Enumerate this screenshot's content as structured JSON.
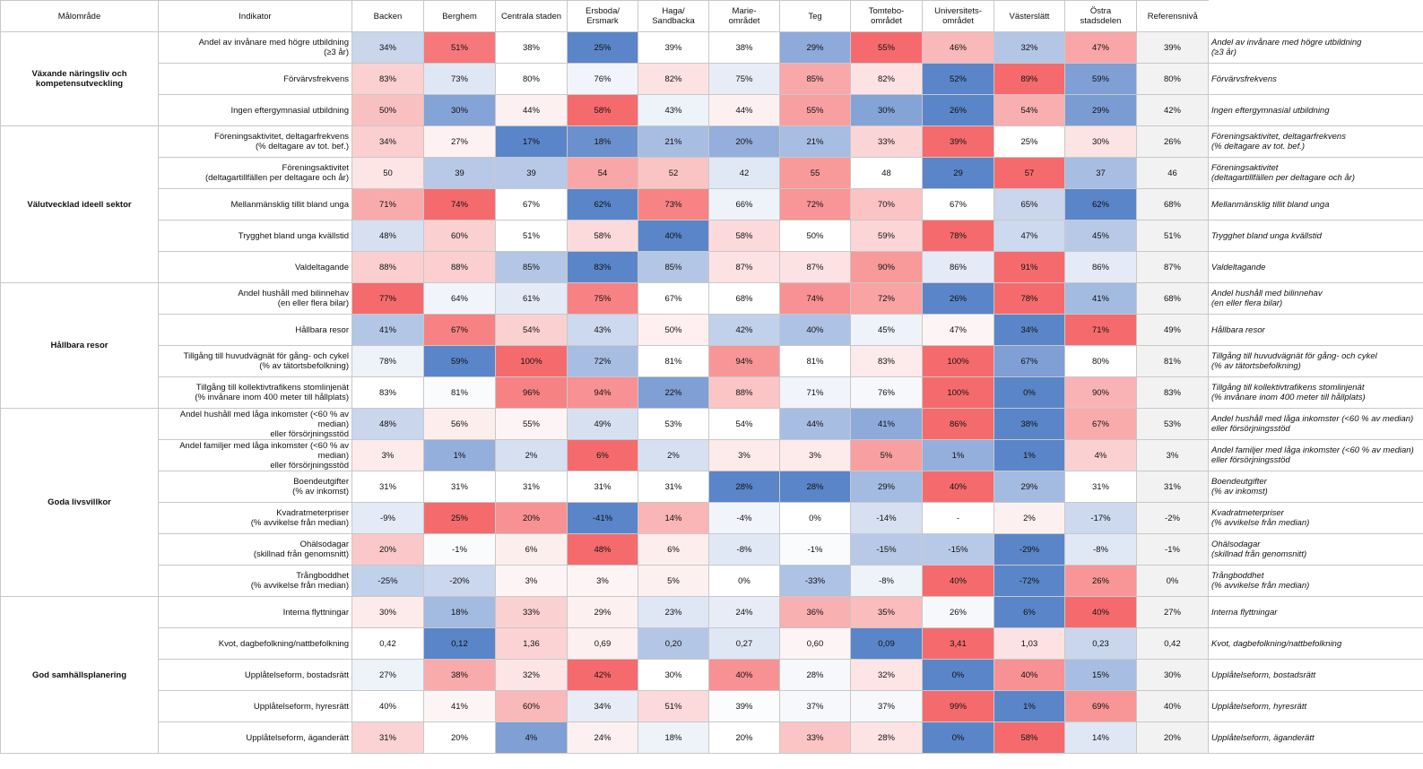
{
  "headers": {
    "omrade": "Målområde",
    "indikator": "Indikator",
    "areas": [
      "Backen",
      "Berghem",
      "Centrala staden",
      "Ersboda/\nErsmark",
      "Haga/\nSandbacka",
      "Marie-\nområdet",
      "Teg",
      "Tomtebo-\nområdet",
      "Universitets-\nområdet",
      "Västerslätt",
      "Östra\nstadsdelen"
    ],
    "ref": "Referensnivå"
  },
  "groups": [
    {
      "name": "Växande näringsliv och kompetensutveckling",
      "rows": [
        {
          "indikator": "Andel av invånare med högre utbildning\n(≥3 år)",
          "values": [
            "34%",
            "51%",
            "38%",
            "25%",
            "39%",
            "38%",
            "29%",
            "55%",
            "46%",
            "32%",
            "47%"
          ],
          "colors": [
            "#c9d6ec",
            "#f6787a",
            "#ffffff",
            "#5a85c8",
            "#ffffff",
            "#ffffff",
            "#8eaadb",
            "#f56b6d",
            "#f9b8b9",
            "#b3c6e6",
            "#f8a6a7"
          ],
          "ref": "39%",
          "note": "Andel av invånare med högre utbildning\n(≥3 år)"
        },
        {
          "indikator": "Förvärvsfrekvens",
          "values": [
            "83%",
            "73%",
            "80%",
            "76%",
            "82%",
            "75%",
            "85%",
            "82%",
            "52%",
            "89%",
            "59%"
          ],
          "colors": [
            "#fbd0d1",
            "#dfe6f4",
            "#ffffff",
            "#f1f4fa",
            "#fde2e3",
            "#e7ecf7",
            "#f8a8a9",
            "#fde2e3",
            "#5a85c8",
            "#f56b6d",
            "#7f9fd5"
          ],
          "ref": "80%",
          "note": "Förvärvsfrekvens"
        },
        {
          "indikator": "Ingen eftergymnasial utbildning",
          "values": [
            "50%",
            "30%",
            "44%",
            "58%",
            "43%",
            "44%",
            "55%",
            "30%",
            "26%",
            "54%",
            "29%"
          ],
          "colors": [
            "#f9c0c1",
            "#84a3d6",
            "#fdf0f0",
            "#f56b6d",
            "#eef2f9",
            "#fdf0f0",
            "#f8a0a1",
            "#84a3d6",
            "#5a85c8",
            "#f9aeaf",
            "#7a9cd3"
          ],
          "ref": "42%",
          "note": "Ingen eftergymnasial utbildning"
        }
      ]
    },
    {
      "name": "Välutvecklad ideell sektor",
      "rows": [
        {
          "indikator": "Föreningsaktivitet, deltagarfrekvens\n(% deltagare av tot. bef.)",
          "values": [
            "34%",
            "27%",
            "17%",
            "18%",
            "21%",
            "20%",
            "21%",
            "33%",
            "39%",
            "25%",
            "30%"
          ],
          "colors": [
            "#fbcfd0",
            "#fdf1f1",
            "#5a85c8",
            "#6a91cd",
            "#a7bde2",
            "#94afdc",
            "#a7bde2",
            "#fbd5d6",
            "#f56b6d",
            "#ffffff",
            "#fce3e4"
          ],
          "ref": "26%",
          "note": "Föreningsaktivitet, deltagarfrekvens\n(% deltagare av tot. bef.)"
        },
        {
          "indikator": "Föreningsaktivitet\n(deltagartillfällen per deltagare och år)",
          "values": [
            "50",
            "39",
            "39",
            "54",
            "52",
            "42",
            "55",
            "48",
            "29",
            "57",
            "37"
          ],
          "colors": [
            "#fde4e5",
            "#b8c9e8",
            "#b8c9e8",
            "#f8a6a7",
            "#fac4c5",
            "#e1e8f5",
            "#f8999a",
            "#ffffff",
            "#5a85c8",
            "#f56b6d",
            "#a7bde2"
          ],
          "ref": "46",
          "note": "Föreningsaktivitet\n(deltagartillfällen per deltagare och år)"
        },
        {
          "indikator": "Mellanmänsklig tillit bland unga",
          "values": [
            "71%",
            "74%",
            "67%",
            "62%",
            "73%",
            "66%",
            "72%",
            "70%",
            "67%",
            "65%",
            "62%"
          ],
          "colors": [
            "#f9abac",
            "#f56b6d",
            "#ffffff",
            "#5a85c8",
            "#f78384",
            "#eef2f9",
            "#f89596",
            "#fbc3c4",
            "#ffffff",
            "#c9d6ec",
            "#5a85c8"
          ],
          "ref": "68%",
          "note": "Mellanmänsklig tillit bland unga"
        },
        {
          "indikator": "Trygghet bland unga kvällstid",
          "values": [
            "48%",
            "60%",
            "51%",
            "58%",
            "40%",
            "58%",
            "50%",
            "59%",
            "78%",
            "47%",
            "45%"
          ],
          "colors": [
            "#d6e0f1",
            "#fbd0d1",
            "#ffffff",
            "#fcdadb",
            "#5a85c8",
            "#fcdadb",
            "#ffffff",
            "#fcd5d6",
            "#f56b6d",
            "#ccd9ee",
            "#b8c9e8"
          ],
          "ref": "51%",
          "note": "Trygghet bland unga kvällstid"
        },
        {
          "indikator": "Valdeltagande",
          "values": [
            "88%",
            "88%",
            "85%",
            "83%",
            "85%",
            "87%",
            "87%",
            "90%",
            "86%",
            "91%",
            "86%"
          ],
          "colors": [
            "#fbcfd0",
            "#fbcfd0",
            "#b3c6e6",
            "#5a85c8",
            "#b3c6e6",
            "#fde2e3",
            "#fde2e3",
            "#f8999a",
            "#e4eaf6",
            "#f56b6d",
            "#e4eaf6"
          ],
          "ref": "87%",
          "note": "Valdeltagande"
        }
      ]
    },
    {
      "name": "Hållbara resor",
      "rows": [
        {
          "indikator": "Andel hushåll med bilinnehav\n(en eller flera bilar)",
          "values": [
            "77%",
            "64%",
            "61%",
            "75%",
            "67%",
            "68%",
            "74%",
            "72%",
            "26%",
            "78%",
            "41%"
          ],
          "colors": [
            "#f56b6d",
            "#f1f4fa",
            "#e4eaf6",
            "#f78284",
            "#ffffff",
            "#ffffff",
            "#f89193",
            "#f9a3a4",
            "#5a85c8",
            "#f56b6d",
            "#a3bae1"
          ],
          "ref": "68%",
          "note": "Andel hushåll med bilinnehav\n(en eller flera bilar)"
        },
        {
          "indikator": "Hållbara resor",
          "values": [
            "41%",
            "67%",
            "54%",
            "43%",
            "50%",
            "42%",
            "40%",
            "45%",
            "47%",
            "34%",
            "71%"
          ],
          "colors": [
            "#b3c6e6",
            "#f78284",
            "#fbd0d1",
            "#ccd9ee",
            "#fef0f0",
            "#c1d0eb",
            "#aec2e5",
            "#eef2f9",
            "#fdf5f5",
            "#5a85c8",
            "#f56b6d"
          ],
          "ref": "49%",
          "note": "Hållbara resor"
        },
        {
          "indikator": "Tillgång till huvudvägnät för gång- och cykel\n(% av tätortsbefolkning)",
          "values": [
            "78%",
            "59%",
            "100%",
            "72%",
            "81%",
            "94%",
            "81%",
            "83%",
            "100%",
            "67%",
            "80%"
          ],
          "colors": [
            "#eef2f9",
            "#5a85c8",
            "#f56b6d",
            "#a7bde2",
            "#ffffff",
            "#f89697",
            "#ffffff",
            "#fdeaea",
            "#f56b6d",
            "#7f9fd5",
            "#ffffff"
          ],
          "ref": "81%",
          "note": "Tillgång till huvudvägnät för gång- och cykel\n(% av tätortsbefolkning)"
        },
        {
          "indikator": "Tillgång till kollektivtrafikens stomlinjenät\n(% invånare inom 400 meter till hållplats)",
          "values": [
            "83%",
            "81%",
            "96%",
            "94%",
            "22%",
            "88%",
            "71%",
            "76%",
            "100%",
            "0%",
            "90%"
          ],
          "colors": [
            "#ffffff",
            "#fafbfd",
            "#f78284",
            "#f89193",
            "#7f9fd5",
            "#fbc5c6",
            "#f1f4fa",
            "#f6f8fc",
            "#f56b6d",
            "#5a85c8",
            "#fab3b4"
          ],
          "ref": "83%",
          "note": "Tillgång till kollektivtrafikens stomlinjenät\n(% invånare inom 400 meter till hållplats)"
        }
      ]
    },
    {
      "name": "Goda livsvillkor",
      "rows": [
        {
          "indikator": "Andel hushåll med låga inkomster (<60 % av median)\neller försörjningsstöd",
          "values": [
            "48%",
            "56%",
            "55%",
            "49%",
            "53%",
            "54%",
            "44%",
            "41%",
            "86%",
            "38%",
            "67%"
          ],
          "colors": [
            "#c9d6ec",
            "#fdeeee",
            "#fdf5f5",
            "#d6e0f1",
            "#ffffff",
            "#ffffff",
            "#a7bde2",
            "#8eaadb",
            "#f56b6d",
            "#5a85c8",
            "#f9abac"
          ],
          "ref": "53%",
          "note": "Andel hushåll med låga inkomster (<60 % av median)\neller försörjningsstöd"
        },
        {
          "indikator": "Andel familjer med låga inkomster (<60 % av median)\neller försörjningsstöd",
          "values": [
            "3%",
            "1%",
            "2%",
            "6%",
            "2%",
            "3%",
            "3%",
            "5%",
            "1%",
            "1%",
            "4%"
          ],
          "colors": [
            "#fdeaea",
            "#94afdc",
            "#d6e0f1",
            "#f56b6d",
            "#d6e0f1",
            "#fdeaea",
            "#fdeaea",
            "#f8a0a1",
            "#94afdc",
            "#5a85c8",
            "#fbd0d1"
          ],
          "ref": "3%",
          "note": "Andel familjer med låga inkomster (<60 % av median)\neller försörjningsstöd"
        },
        {
          "indikator": "Boendeutgifter\n(% av inkomst)",
          "values": [
            "31%",
            "31%",
            "31%",
            "31%",
            "31%",
            "28%",
            "28%",
            "29%",
            "40%",
            "29%",
            "31%"
          ],
          "colors": [
            "#ffffff",
            "#ffffff",
            "#ffffff",
            "#ffffff",
            "#ffffff",
            "#5a85c8",
            "#5a85c8",
            "#a3bae1",
            "#f56b6d",
            "#a3bae1",
            "#ffffff"
          ],
          "ref": "31%",
          "note": "Boendeutgifter\n(% av inkomst)"
        },
        {
          "indikator": "Kvadratmeterpriser\n(% avvikelse från median)",
          "values": [
            "-9%",
            "25%",
            "20%",
            "-41%",
            "14%",
            "-4%",
            "0%",
            "-14%",
            "-",
            "2%",
            "-17%"
          ],
          "colors": [
            "#e4eaf6",
            "#f56b6d",
            "#f89193",
            "#5a85c8",
            "#fab5b6",
            "#f1f4fa",
            "#ffffff",
            "#d6e0f1",
            "#ffffff",
            "#fdf0f0",
            "#ccd9ee"
          ],
          "ref": "-2%",
          "note": "Kvadratmeterpriser\n(% avvikelse från median)"
        },
        {
          "indikator": "Ohälsodagar\n(skillnad från genomsnitt)",
          "values": [
            "20%",
            "-1%",
            "6%",
            "48%",
            "6%",
            "-8%",
            "-1%",
            "-15%",
            "-15%",
            "-29%",
            "-8%"
          ],
          "colors": [
            "#fbc8c9",
            "#fafbfd",
            "#fdeeee",
            "#f56b6d",
            "#fdeeee",
            "#e1e8f5",
            "#fafbfd",
            "#b8c9e8",
            "#b8c9e8",
            "#5a85c8",
            "#e1e8f5"
          ],
          "ref": "-1%",
          "note": "Ohälsodagar\n(skillnad från genomsnitt)"
        },
        {
          "indikator": "Trångboddhet\n(% avvikelse från median)",
          "values": [
            "-25%",
            "-20%",
            "3%",
            "3%",
            "5%",
            "0%",
            "-33%",
            "-8%",
            "40%",
            "-72%",
            "26%"
          ],
          "colors": [
            "#c1d0eb",
            "#cbd7ee",
            "#fdf5f5",
            "#fdf5f5",
            "#fdf0f0",
            "#ffffff",
            "#aec2e5",
            "#eef2f9",
            "#f56b6d",
            "#5a85c8",
            "#f89697"
          ],
          "ref": "0%",
          "note": "Trångboddhet\n(% avvikelse från median)"
        }
      ]
    },
    {
      "name": "God samhällsplanering",
      "rows": [
        {
          "indikator": "Interna flyttningar",
          "values": [
            "30%",
            "18%",
            "33%",
            "29%",
            "23%",
            "24%",
            "36%",
            "35%",
            "26%",
            "6%",
            "40%"
          ],
          "colors": [
            "#fdeaea",
            "#a3bae1",
            "#fbd0d1",
            "#fdf0f0",
            "#dfe6f4",
            "#e7ecf7",
            "#f9b0b1",
            "#fabcbd",
            "#f6f8fc",
            "#5a85c8",
            "#f56b6d"
          ],
          "ref": "27%",
          "note": "Interna flyttningar"
        },
        {
          "indikator": "Kvot, dagbefolkning/nattbefolkning",
          "values": [
            "0,42",
            "0,12",
            "1,36",
            "0,69",
            "0,20",
            "0,27",
            "0,60",
            "0,09",
            "3,41",
            "1,03",
            "0,23"
          ],
          "colors": [
            "#ffffff",
            "#5a85c8",
            "#fbd3d4",
            "#fdf0f0",
            "#b3c6e6",
            "#dfe6f4",
            "#fdf5f5",
            "#5a85c8",
            "#f56b6d",
            "#fde2e3",
            "#c9d6ec"
          ],
          "ref": "0,42",
          "note": "Kvot, dagbefolkning/nattbefolkning"
        },
        {
          "indikator": "Upplåtelseform, bostadsrätt",
          "values": [
            "27%",
            "38%",
            "32%",
            "42%",
            "30%",
            "40%",
            "28%",
            "32%",
            "0%",
            "40%",
            "15%"
          ],
          "colors": [
            "#eef2f9",
            "#f9abac",
            "#fde4e5",
            "#f56b6d",
            "#ffffff",
            "#f89193",
            "#f6f8fc",
            "#fde4e5",
            "#5a85c8",
            "#f89193",
            "#a7bde2"
          ],
          "ref": "30%",
          "note": "Upplåtelseform, bostadsrätt"
        },
        {
          "indikator": "Upplåtelseform, hyresrätt",
          "values": [
            "40%",
            "41%",
            "60%",
            "34%",
            "51%",
            "39%",
            "37%",
            "37%",
            "99%",
            "1%",
            "69%"
          ],
          "colors": [
            "#ffffff",
            "#fdf5f5",
            "#f9b8b9",
            "#e7ecf7",
            "#fcdadb",
            "#fbfcfe",
            "#f6f8fc",
            "#f6f8fc",
            "#f56b6d",
            "#5a85c8",
            "#f89596"
          ],
          "ref": "40%",
          "note": "Upplåtelseform, hyresrätt"
        },
        {
          "indikator": "Upplåtelseform, äganderätt",
          "values": [
            "31%",
            "20%",
            "4%",
            "24%",
            "18%",
            "20%",
            "33%",
            "28%",
            "0%",
            "58%",
            "14%"
          ],
          "colors": [
            "#fbd3d4",
            "#ffffff",
            "#7f9fd5",
            "#fdf0f0",
            "#eef2f9",
            "#ffffff",
            "#fbc5c6",
            "#fce3e4",
            "#5a85c8",
            "#f56b6d",
            "#dfe6f4"
          ],
          "ref": "20%",
          "note": "Upplåtelseform, äganderätt"
        }
      ]
    }
  ]
}
